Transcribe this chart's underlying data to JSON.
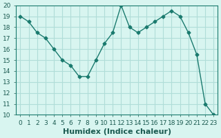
{
  "x": [
    0,
    1,
    2,
    3,
    4,
    5,
    6,
    7,
    8,
    9,
    10,
    11,
    12,
    13,
    14,
    15,
    16,
    17,
    18,
    19,
    20,
    21,
    22,
    23
  ],
  "y": [
    19,
    18.5,
    17.5,
    17,
    16,
    15,
    14.5,
    13.5,
    13.5,
    15,
    16.5,
    17.5,
    20,
    18,
    17.5,
    18,
    18.5,
    19,
    19.5,
    19,
    17.5,
    15.5,
    11,
    10
  ],
  "line_color": "#1a7a6e",
  "marker": "D",
  "marker_size": 2.5,
  "bg_color": "#d8f5f0",
  "grid_color": "#b0ddd8",
  "xlabel": "Humidex (Indice chaleur)",
  "xlabel_fontsize": 8,
  "xlabel_color": "#1a5a50",
  "tick_fontsize": 6.5,
  "ylim": [
    10,
    20
  ],
  "xlim_min": -0.5,
  "xlim_max": 23.5,
  "yticks": [
    10,
    11,
    12,
    13,
    14,
    15,
    16,
    17,
    18,
    19,
    20
  ],
  "xticks": [
    0,
    1,
    2,
    3,
    4,
    5,
    6,
    7,
    8,
    9,
    10,
    11,
    12,
    13,
    14,
    15,
    16,
    17,
    18,
    19,
    20,
    21,
    22,
    23
  ]
}
